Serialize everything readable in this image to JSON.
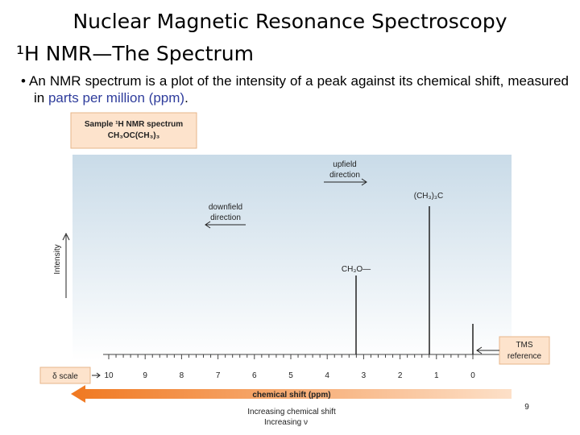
{
  "slide": {
    "title": "Nuclear Magnetic Resonance Spectroscopy",
    "subtitle": "¹H NMR—The Spectrum",
    "bullet": {
      "text": "An NMR spectrum is a plot of the intensity of a peak against its chemical shift, measured in ",
      "highlight": "parts per million (ppm)",
      "end": "."
    },
    "page_number": "9"
  },
  "figure": {
    "sample_label": "Sample ¹H NMR spectrum",
    "sample_formula": "CH₃OC(CH₃)₃",
    "upfield": [
      "upfield",
      "direction"
    ],
    "downfield": [
      "downfield",
      "direction"
    ],
    "peak_labels": [
      "(CH₃)₃C",
      "CH₃O—"
    ],
    "y_label": "Intensity",
    "tms": [
      "TMS",
      "reference"
    ],
    "scale_label": "δ scale",
    "ticks": [
      10,
      9,
      8,
      7,
      6,
      5,
      4,
      3,
      2,
      1,
      0
    ],
    "x_label": "chemical shift (ppm)",
    "increasing_shift": "Increasing chemical shift",
    "increasing_nu": "Increasing ν"
  }
}
